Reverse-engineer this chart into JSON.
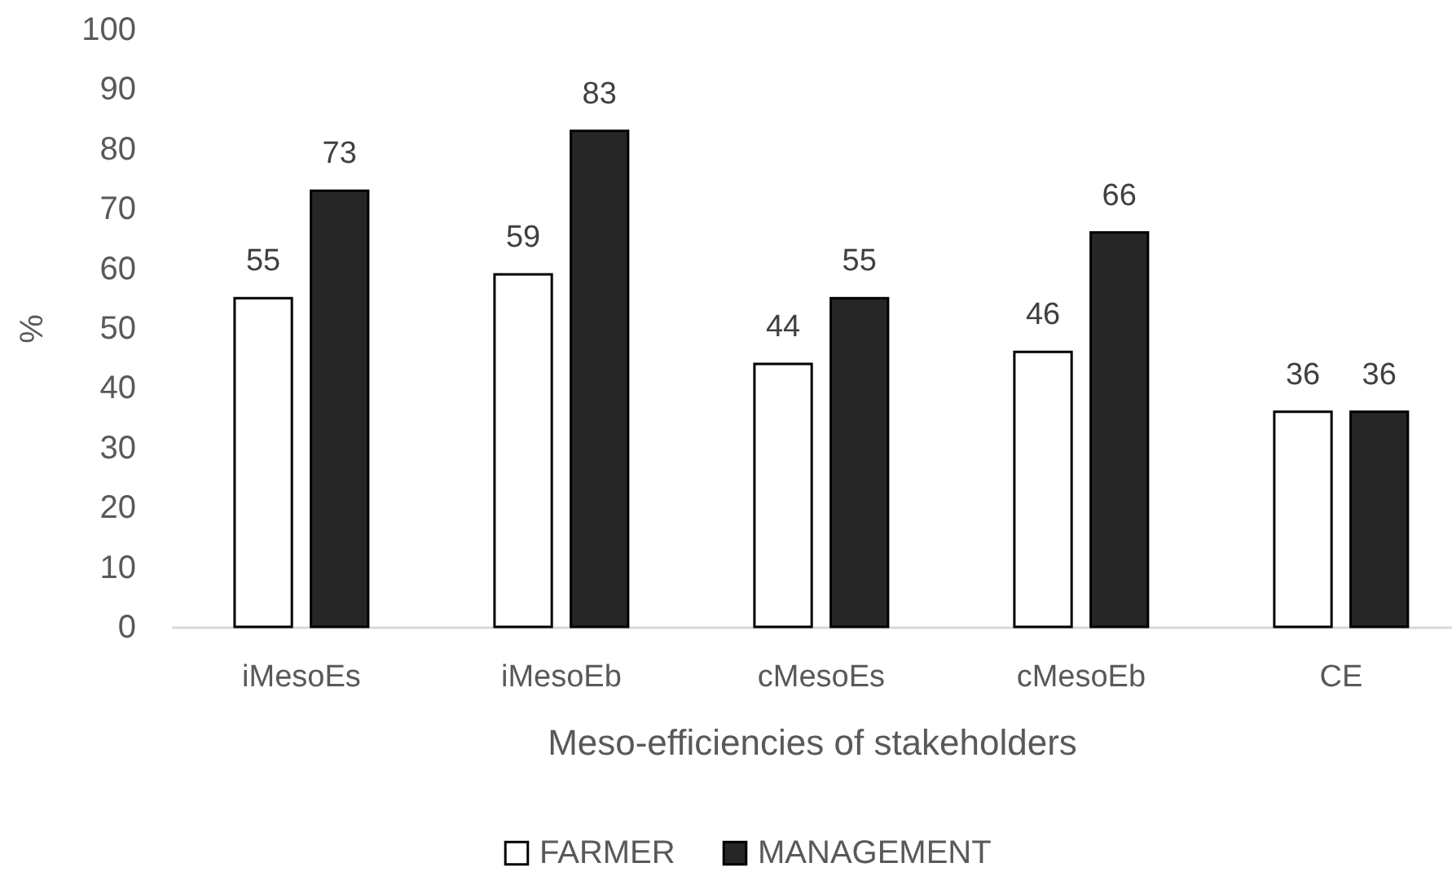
{
  "chart_data": {
    "type": "bar",
    "xlabel": "Meso-efficiencies of stakeholders",
    "ylabel": "%",
    "categories": [
      "iMesoEs",
      "iMesoEb",
      "cMesoEs",
      "cMesoEb",
      "CE"
    ],
    "series": [
      {
        "name": "FARMER",
        "color": "#ffffff",
        "values": [
          55,
          59,
          44,
          46,
          36
        ]
      },
      {
        "name": "MANAGEMENT",
        "color": "#262626",
        "values": [
          73,
          83,
          55,
          66,
          36
        ]
      }
    ],
    "ylim": [
      0,
      100
    ],
    "yticks": [
      0,
      10,
      20,
      30,
      40,
      50,
      60,
      70,
      80,
      90,
      100
    ],
    "grid": false,
    "legend": "bottom",
    "data_labels": true
  }
}
